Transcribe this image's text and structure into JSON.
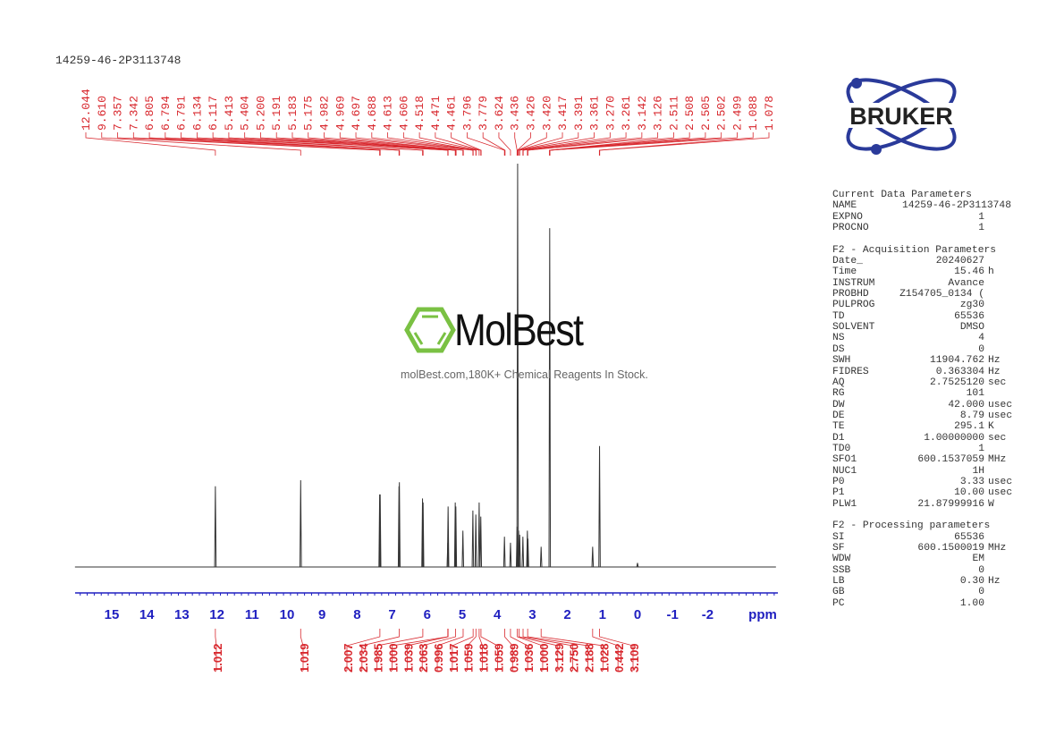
{
  "header": {
    "title": "14259-46-2P3113748"
  },
  "logo": {
    "text": "BRUKER",
    "color": "#2a3a9a"
  },
  "watermark": {
    "brand": "MolBest",
    "tagline": "molBest.com,180K+ Chemical Reagents In Stock.",
    "hex_color": "#7ac143"
  },
  "colors": {
    "peak_labels": "#d8282e",
    "axis": "#2020c0",
    "spectrum": "#333333"
  },
  "parameters": {
    "sections": [
      {
        "title": "Current Data Parameters",
        "rows": [
          {
            "key": "NAME",
            "value": "14259-46-2P3113748",
            "unit": ""
          },
          {
            "key": "EXPNO",
            "value": "1",
            "unit": ""
          },
          {
            "key": "PROCNO",
            "value": "1",
            "unit": ""
          }
        ]
      },
      {
        "title": "F2 - Acquisition Parameters",
        "rows": [
          {
            "key": "Date_",
            "value": "20240627",
            "unit": ""
          },
          {
            "key": "Time",
            "value": "15.46",
            "unit": "h"
          },
          {
            "key": "INSTRUM",
            "value": "Avance",
            "unit": ""
          },
          {
            "key": "PROBHD",
            "value": "Z154705_0134 (",
            "unit": ""
          },
          {
            "key": "PULPROG",
            "value": "zg30",
            "unit": ""
          },
          {
            "key": "TD",
            "value": "65536",
            "unit": ""
          },
          {
            "key": "SOLVENT",
            "value": "DMSO",
            "unit": ""
          },
          {
            "key": "NS",
            "value": "4",
            "unit": ""
          },
          {
            "key": "DS",
            "value": "0",
            "unit": ""
          },
          {
            "key": "SWH",
            "value": "11904.762",
            "unit": "Hz"
          },
          {
            "key": "FIDRES",
            "value": "0.363304",
            "unit": "Hz"
          },
          {
            "key": "AQ",
            "value": "2.7525120",
            "unit": "sec"
          },
          {
            "key": "RG",
            "value": "101",
            "unit": ""
          },
          {
            "key": "DW",
            "value": "42.000",
            "unit": "usec"
          },
          {
            "key": "DE",
            "value": "8.79",
            "unit": "usec"
          },
          {
            "key": "TE",
            "value": "295.1",
            "unit": "K"
          },
          {
            "key": "D1",
            "value": "1.00000000",
            "unit": "sec"
          },
          {
            "key": "TD0",
            "value": "1",
            "unit": ""
          },
          {
            "key": "SFO1",
            "value": "600.1537059",
            "unit": "MHz"
          },
          {
            "key": "NUC1",
            "value": "1H",
            "unit": ""
          },
          {
            "key": "P0",
            "value": "3.33",
            "unit": "usec"
          },
          {
            "key": "P1",
            "value": "10.00",
            "unit": "usec"
          },
          {
            "key": "PLW1",
            "value": "21.87999916",
            "unit": "W"
          }
        ]
      },
      {
        "title": "F2 - Processing parameters",
        "rows": [
          {
            "key": "SI",
            "value": "65536",
            "unit": ""
          },
          {
            "key": "SF",
            "value": "600.1500019",
            "unit": "MHz"
          },
          {
            "key": "WDW",
            "value": "EM",
            "unit": ""
          },
          {
            "key": "SSB",
            "value": "0",
            "unit": ""
          },
          {
            "key": "LB",
            "value": "0.30",
            "unit": "Hz"
          },
          {
            "key": "GB",
            "value": "0",
            "unit": ""
          },
          {
            "key": "PC",
            "value": "1.00",
            "unit": ""
          }
        ]
      }
    ]
  },
  "chart_data": {
    "type": "line",
    "xlabel": "ppm",
    "xlim": [
      16.05,
      -3.95
    ],
    "x_reversed": true,
    "grid": false,
    "x_ticks": [
      "15",
      "14",
      "13",
      "12",
      "11",
      "10",
      "9",
      "8",
      "7",
      "6",
      "5",
      "4",
      "3",
      "2",
      "1",
      "0",
      "-1",
      "-2"
    ],
    "peak_labels": [
      "12.044",
      "9.610",
      "7.357",
      "7.342",
      "6.805",
      "6.794",
      "6.791",
      "6.134",
      "6.117",
      "5.413",
      "5.404",
      "5.200",
      "5.191",
      "5.183",
      "5.175",
      "4.982",
      "4.969",
      "4.697",
      "4.688",
      "4.613",
      "4.606",
      "4.518",
      "4.471",
      "4.461",
      "3.796",
      "3.779",
      "3.624",
      "3.436",
      "3.426",
      "3.420",
      "3.417",
      "3.391",
      "3.361",
      "3.270",
      "3.261",
      "3.142",
      "3.126",
      "2.511",
      "2.508",
      "2.505",
      "2.502",
      "2.499",
      "1.088",
      "1.078"
    ],
    "peaks": [
      {
        "ppm": 12.044,
        "intensity": 0.2
      },
      {
        "ppm": 9.61,
        "intensity": 0.215
      },
      {
        "ppm": 7.357,
        "intensity": 0.18
      },
      {
        "ppm": 7.342,
        "intensity": 0.18
      },
      {
        "ppm": 6.805,
        "intensity": 0.2
      },
      {
        "ppm": 6.794,
        "intensity": 0.21
      },
      {
        "ppm": 6.134,
        "intensity": 0.17
      },
      {
        "ppm": 6.117,
        "intensity": 0.16
      },
      {
        "ppm": 5.413,
        "intensity": 0.06
      },
      {
        "ppm": 5.404,
        "intensity": 0.15
      },
      {
        "ppm": 5.2,
        "intensity": 0.16
      },
      {
        "ppm": 5.183,
        "intensity": 0.15
      },
      {
        "ppm": 4.982,
        "intensity": 0.09
      },
      {
        "ppm": 4.697,
        "intensity": 0.14
      },
      {
        "ppm": 4.613,
        "intensity": 0.13
      },
      {
        "ppm": 4.518,
        "intensity": 0.16
      },
      {
        "ppm": 4.471,
        "intensity": 0.125
      },
      {
        "ppm": 3.796,
        "intensity": 0.075
      },
      {
        "ppm": 3.624,
        "intensity": 0.06
      },
      {
        "ppm": 3.436,
        "intensity": 0.1
      },
      {
        "ppm": 3.42,
        "intensity": 1.0
      },
      {
        "ppm": 3.391,
        "intensity": 0.09
      },
      {
        "ppm": 3.361,
        "intensity": 0.08
      },
      {
        "ppm": 3.27,
        "intensity": 0.075
      },
      {
        "ppm": 3.142,
        "intensity": 0.09
      },
      {
        "ppm": 3.126,
        "intensity": 0.07
      },
      {
        "ppm": 2.75,
        "intensity": 0.05
      },
      {
        "ppm": 2.505,
        "intensity": 0.84
      },
      {
        "ppm": 1.28,
        "intensity": 0.05
      },
      {
        "ppm": 1.083,
        "intensity": 0.3
      },
      {
        "ppm": 0.0,
        "intensity": 0.01
      }
    ],
    "integrals": [
      {
        "ppm": 12.044,
        "value": "1.012"
      },
      {
        "ppm": 9.61,
        "value": "1.019"
      },
      {
        "ppm": 7.35,
        "value": "2.007"
      },
      {
        "ppm": 6.8,
        "value": "2.034"
      },
      {
        "ppm": 6.125,
        "value": "1.985"
      },
      {
        "ppm": 5.413,
        "value": "1.000"
      },
      {
        "ppm": 5.404,
        "value": "1.039"
      },
      {
        "ppm": 5.19,
        "value": "2.063"
      },
      {
        "ppm": 4.975,
        "value": "0.996"
      },
      {
        "ppm": 4.69,
        "value": "1.017"
      },
      {
        "ppm": 4.61,
        "value": "1.059"
      },
      {
        "ppm": 4.518,
        "value": "1.018"
      },
      {
        "ppm": 4.466,
        "value": "1.059"
      },
      {
        "ppm": 3.79,
        "value": "0.989"
      },
      {
        "ppm": 3.624,
        "value": "1.036"
      },
      {
        "ppm": 3.43,
        "value": "1.000"
      },
      {
        "ppm": 3.38,
        "value": "3.129"
      },
      {
        "ppm": 3.265,
        "value": "2.750"
      },
      {
        "ppm": 3.134,
        "value": "2.188"
      },
      {
        "ppm": 2.75,
        "value": "1.028"
      },
      {
        "ppm": 1.28,
        "value": "0.442"
      },
      {
        "ppm": 1.083,
        "value": "3.109"
      }
    ]
  }
}
